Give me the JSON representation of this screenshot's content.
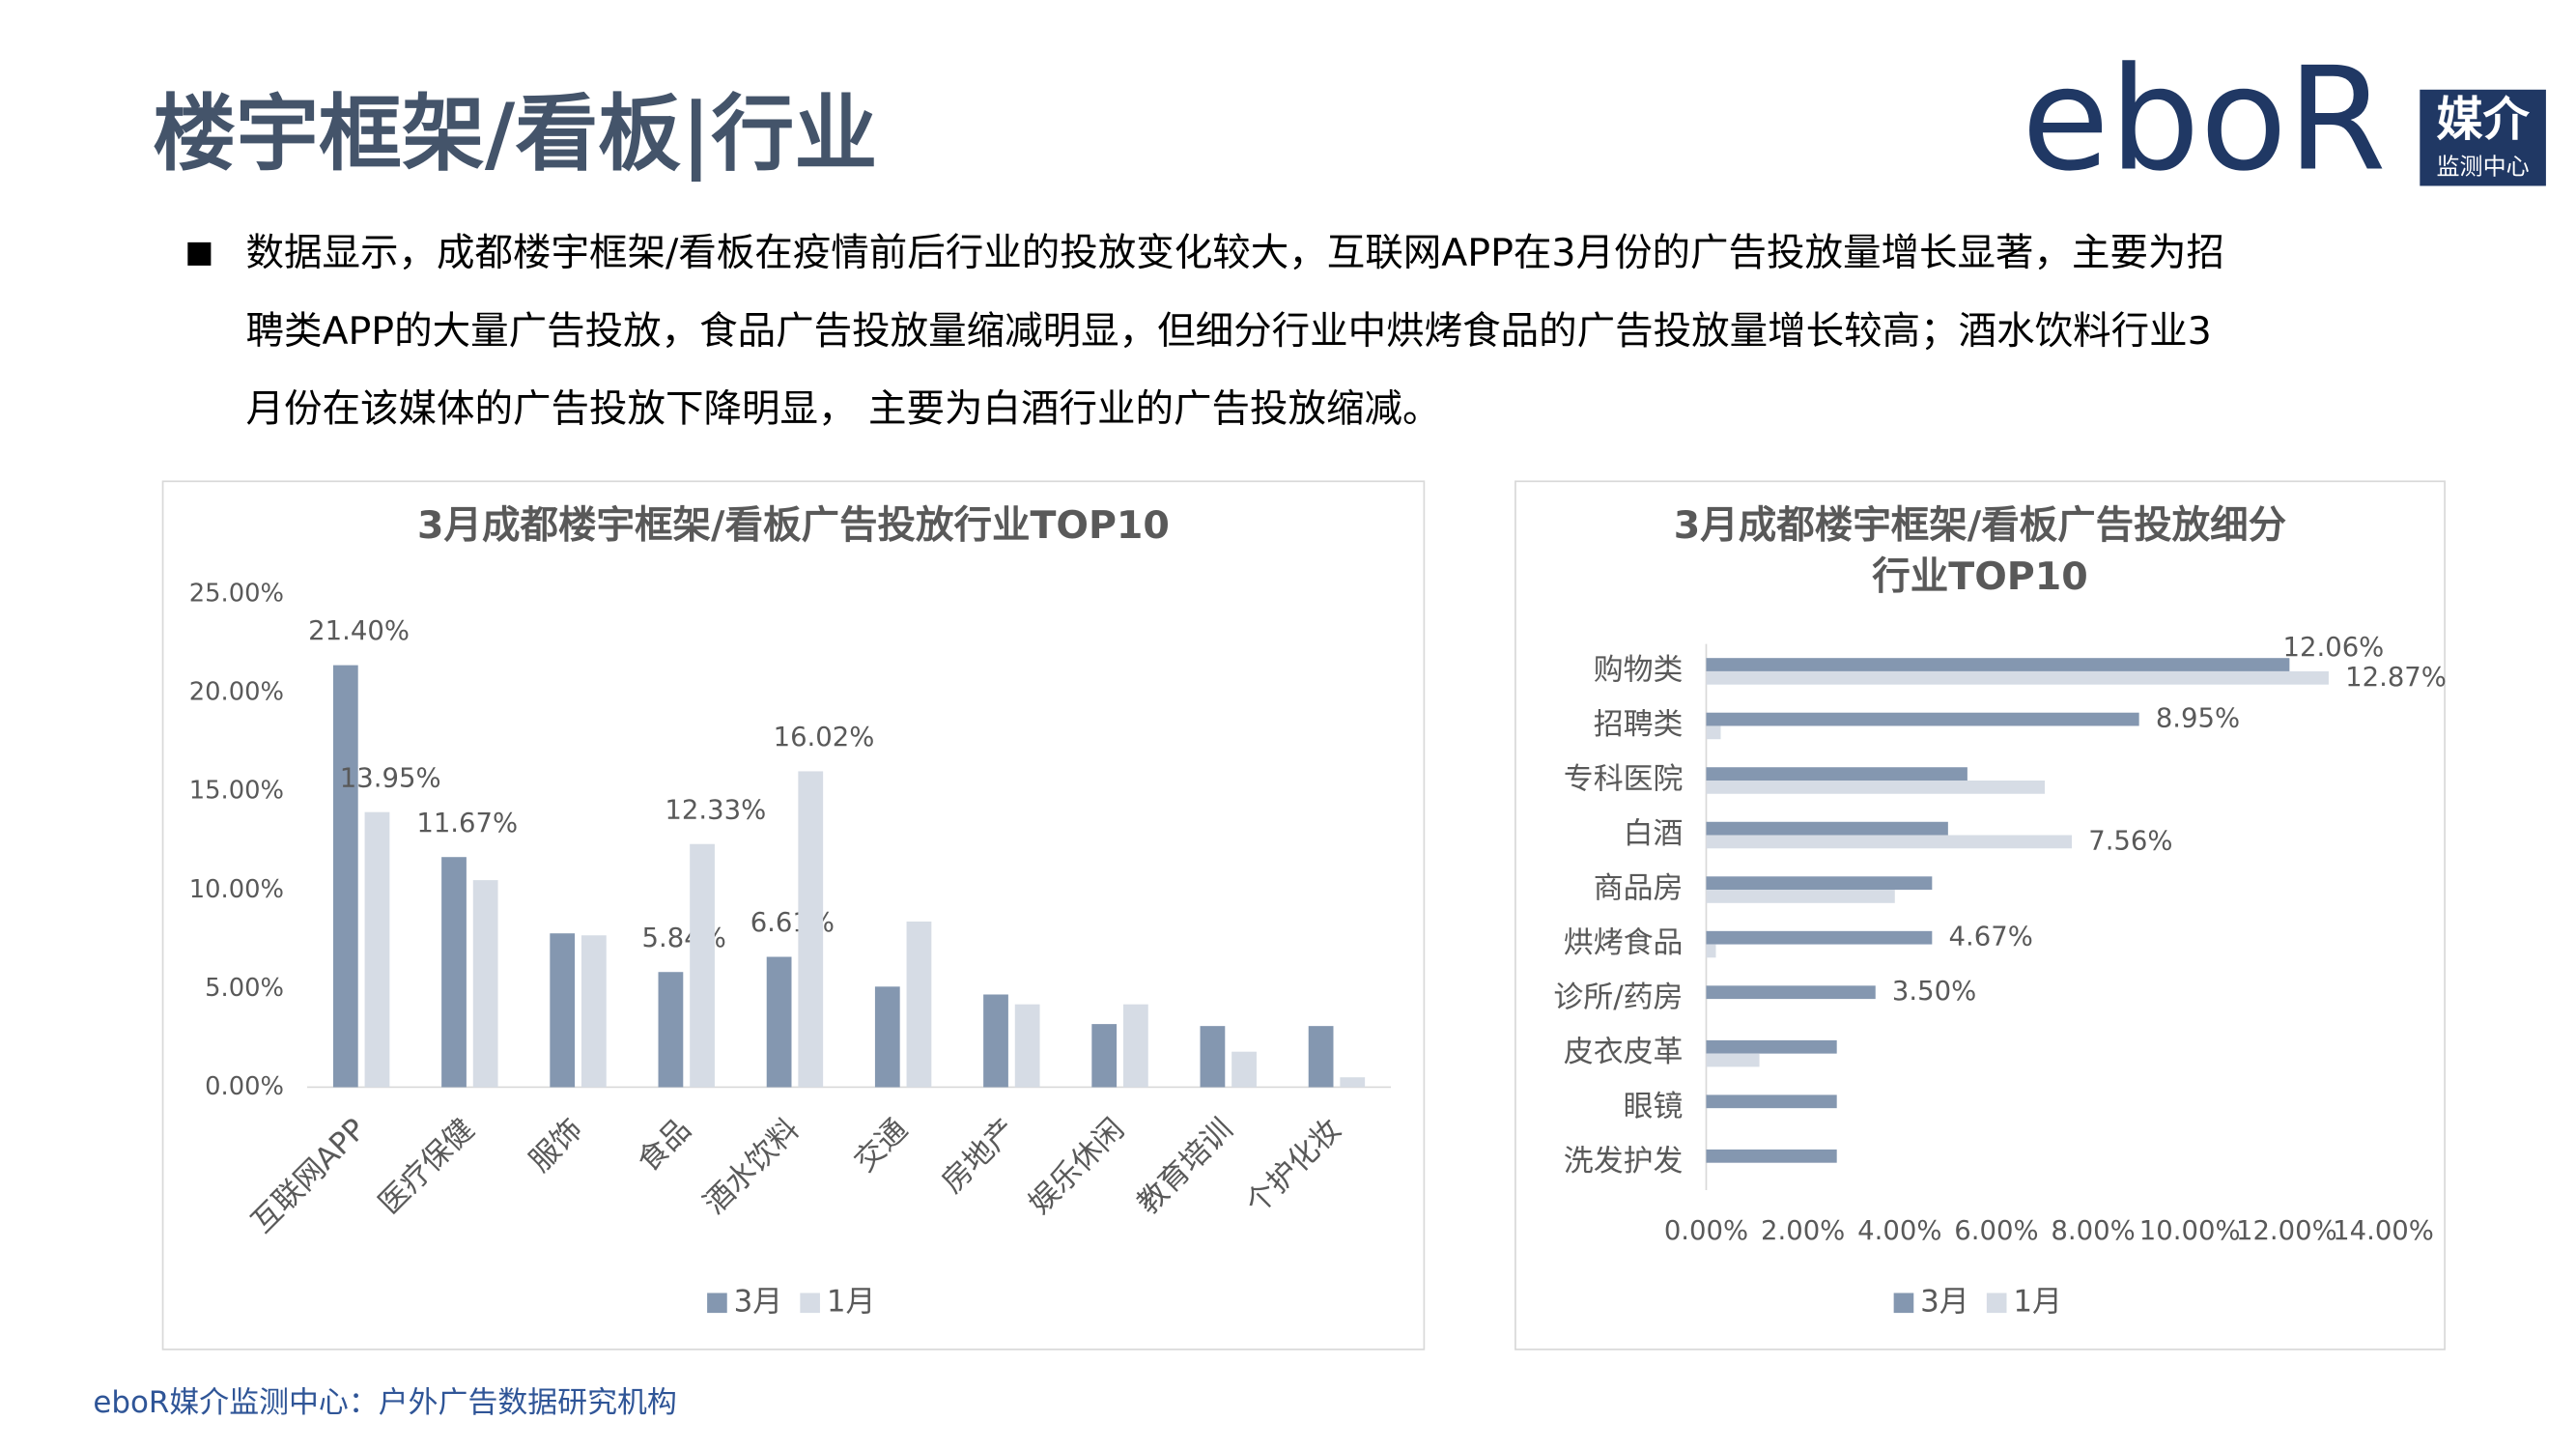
{
  "header": {
    "title": "楼宇框架/看板|行业"
  },
  "logo": {
    "brand": "eboR",
    "name": "媒介",
    "sub": "监测中心"
  },
  "bullet": {
    "lines": [
      "数据显示，成都楼宇框架/看板在疫情前后行业的投放变化较大，互联网APP在3月份的广告投放量增长显著，主要为招",
      "聘类APP的大量广告投放，食品广告投放量缩减明显，但细分行业中烘烤食品的广告投放量增长较高；酒水饮料行业3",
      "月份在该媒体的广告投放下降明显， 主要为白酒行业的广告投放缩减。"
    ]
  },
  "footer": "eboR媒介监测中心：户外广告数据研究机构",
  "chart_data": [
    {
      "type": "bar",
      "title": [
        "3月成都楼宇框架/看板广告投放行业TOP10"
      ],
      "categories": [
        "互联网APP",
        "医疗保健",
        "服饰",
        "食品",
        "酒水饮料",
        "交通",
        "房地产",
        "娱乐休闲",
        "教育培训",
        "个护化妆"
      ],
      "series": [
        {
          "name": "3月",
          "color": "#8497b0",
          "values": [
            21.4,
            11.67,
            7.8,
            5.84,
            6.61,
            5.1,
            4.7,
            3.2,
            3.1,
            3.1
          ],
          "value_labels": [
            "21.40%",
            "11.67%",
            null,
            "5.84%",
            "6.61%",
            null,
            null,
            null,
            null,
            null
          ]
        },
        {
          "name": "1月",
          "color": "#d6dce5",
          "values": [
            13.95,
            10.5,
            7.7,
            12.33,
            16.02,
            8.4,
            4.2,
            4.2,
            1.8,
            0.5
          ],
          "value_labels": [
            "13.95%",
            null,
            null,
            "12.33%",
            "16.02%",
            null,
            null,
            null,
            null,
            null
          ]
        }
      ],
      "ylim": [
        0,
        25
      ],
      "yticks": [
        {
          "value": 0,
          "label": "0.00%"
        },
        {
          "value": 5,
          "label": "5.00%"
        },
        {
          "value": 10,
          "label": "10.00%"
        },
        {
          "value": 15,
          "label": "15.00%"
        },
        {
          "value": 20,
          "label": "20.00%"
        },
        {
          "value": 25,
          "label": "25.00%"
        }
      ],
      "legend": "bottom"
    },
    {
      "type": "barh",
      "title": [
        "3月成都楼宇框架/看板广告投放细分",
        "行业TOP10"
      ],
      "categories": [
        "购物类",
        "招聘类",
        "专科医院",
        "白酒",
        "商品房",
        "烘烤食品",
        "诊所/药房",
        "皮衣皮革",
        "眼镜",
        "洗发护发"
      ],
      "series": [
        {
          "name": "3月",
          "color": "#8497b0",
          "values": [
            12.06,
            8.95,
            5.4,
            5.0,
            4.67,
            4.67,
            3.5,
            2.7,
            2.7,
            2.7
          ],
          "value_labels": [
            "12.06%",
            "8.95%",
            null,
            null,
            null,
            "4.67%",
            "3.50%",
            null,
            null,
            null
          ]
        },
        {
          "name": "1月",
          "color": "#d6dce5",
          "values": [
            12.87,
            0.3,
            7.0,
            7.56,
            3.9,
            0.2,
            0,
            1.1,
            0,
            0
          ],
          "value_labels": [
            "12.87%",
            null,
            null,
            "7.56%",
            null,
            null,
            null,
            null,
            null,
            null
          ]
        }
      ],
      "xlim": [
        0,
        14
      ],
      "xticks": [
        {
          "value": 0,
          "label": "0.00%"
        },
        {
          "value": 2,
          "label": "2.00%"
        },
        {
          "value": 4,
          "label": "4.00%"
        },
        {
          "value": 6,
          "label": "6.00%"
        },
        {
          "value": 8,
          "label": "8.00%"
        },
        {
          "value": 10,
          "label": "10.00%"
        },
        {
          "value": 12,
          "label": "12.00%"
        },
        {
          "value": 14,
          "label": "14.00%"
        }
      ],
      "legend": "bottom"
    }
  ]
}
